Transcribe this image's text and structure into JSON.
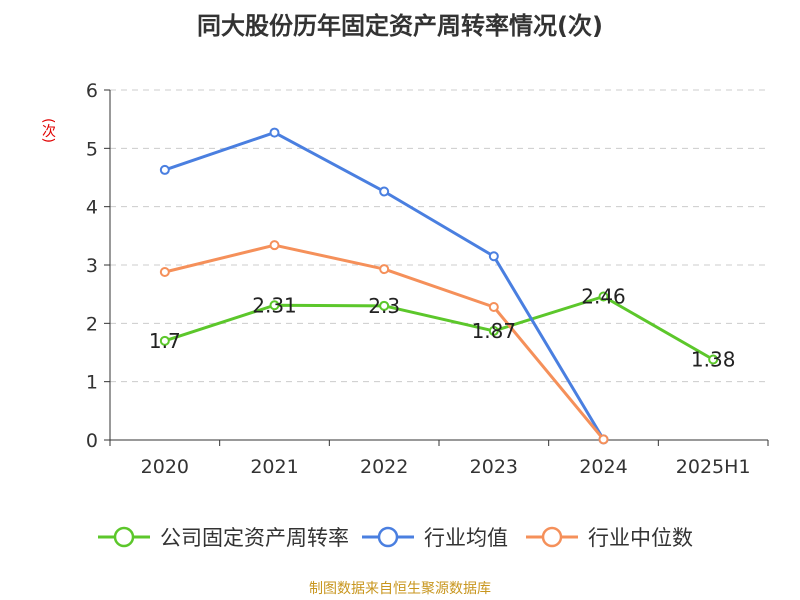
{
  "title": "同大股份历年固定资产周转率情况(次)",
  "unit_label": "(次)",
  "footer": "制图数据来自恒生聚源数据库",
  "chart_data": {
    "type": "line",
    "title": "同大股份历年固定资产周转率情况(次)",
    "ylabel": "(次)",
    "xlabel": "",
    "categories": [
      "2020",
      "2021",
      "2022",
      "2023",
      "2024",
      "2025H1"
    ],
    "ylim": [
      0,
      6
    ],
    "yticks": [
      0,
      1,
      2,
      3,
      4,
      5,
      6
    ],
    "grid": true,
    "legend_position": "bottom",
    "series": [
      {
        "name": "公司固定资产周转率",
        "color": "#5cc72b",
        "show_labels": true,
        "labels": [
          "1.7",
          "2.31",
          "2.3",
          "1.87",
          "2.46",
          "1.38"
        ],
        "values": [
          1.7,
          2.31,
          2.3,
          1.87,
          2.46,
          1.38
        ]
      },
      {
        "name": "行业均值",
        "color": "#4a7fe0",
        "show_labels": false,
        "values": [
          4.63,
          5.27,
          4.26,
          3.15,
          0.01,
          null
        ]
      },
      {
        "name": "行业中位数",
        "color": "#f5905a",
        "show_labels": false,
        "values": [
          2.88,
          3.34,
          2.93,
          2.28,
          0.01,
          null
        ]
      }
    ]
  }
}
